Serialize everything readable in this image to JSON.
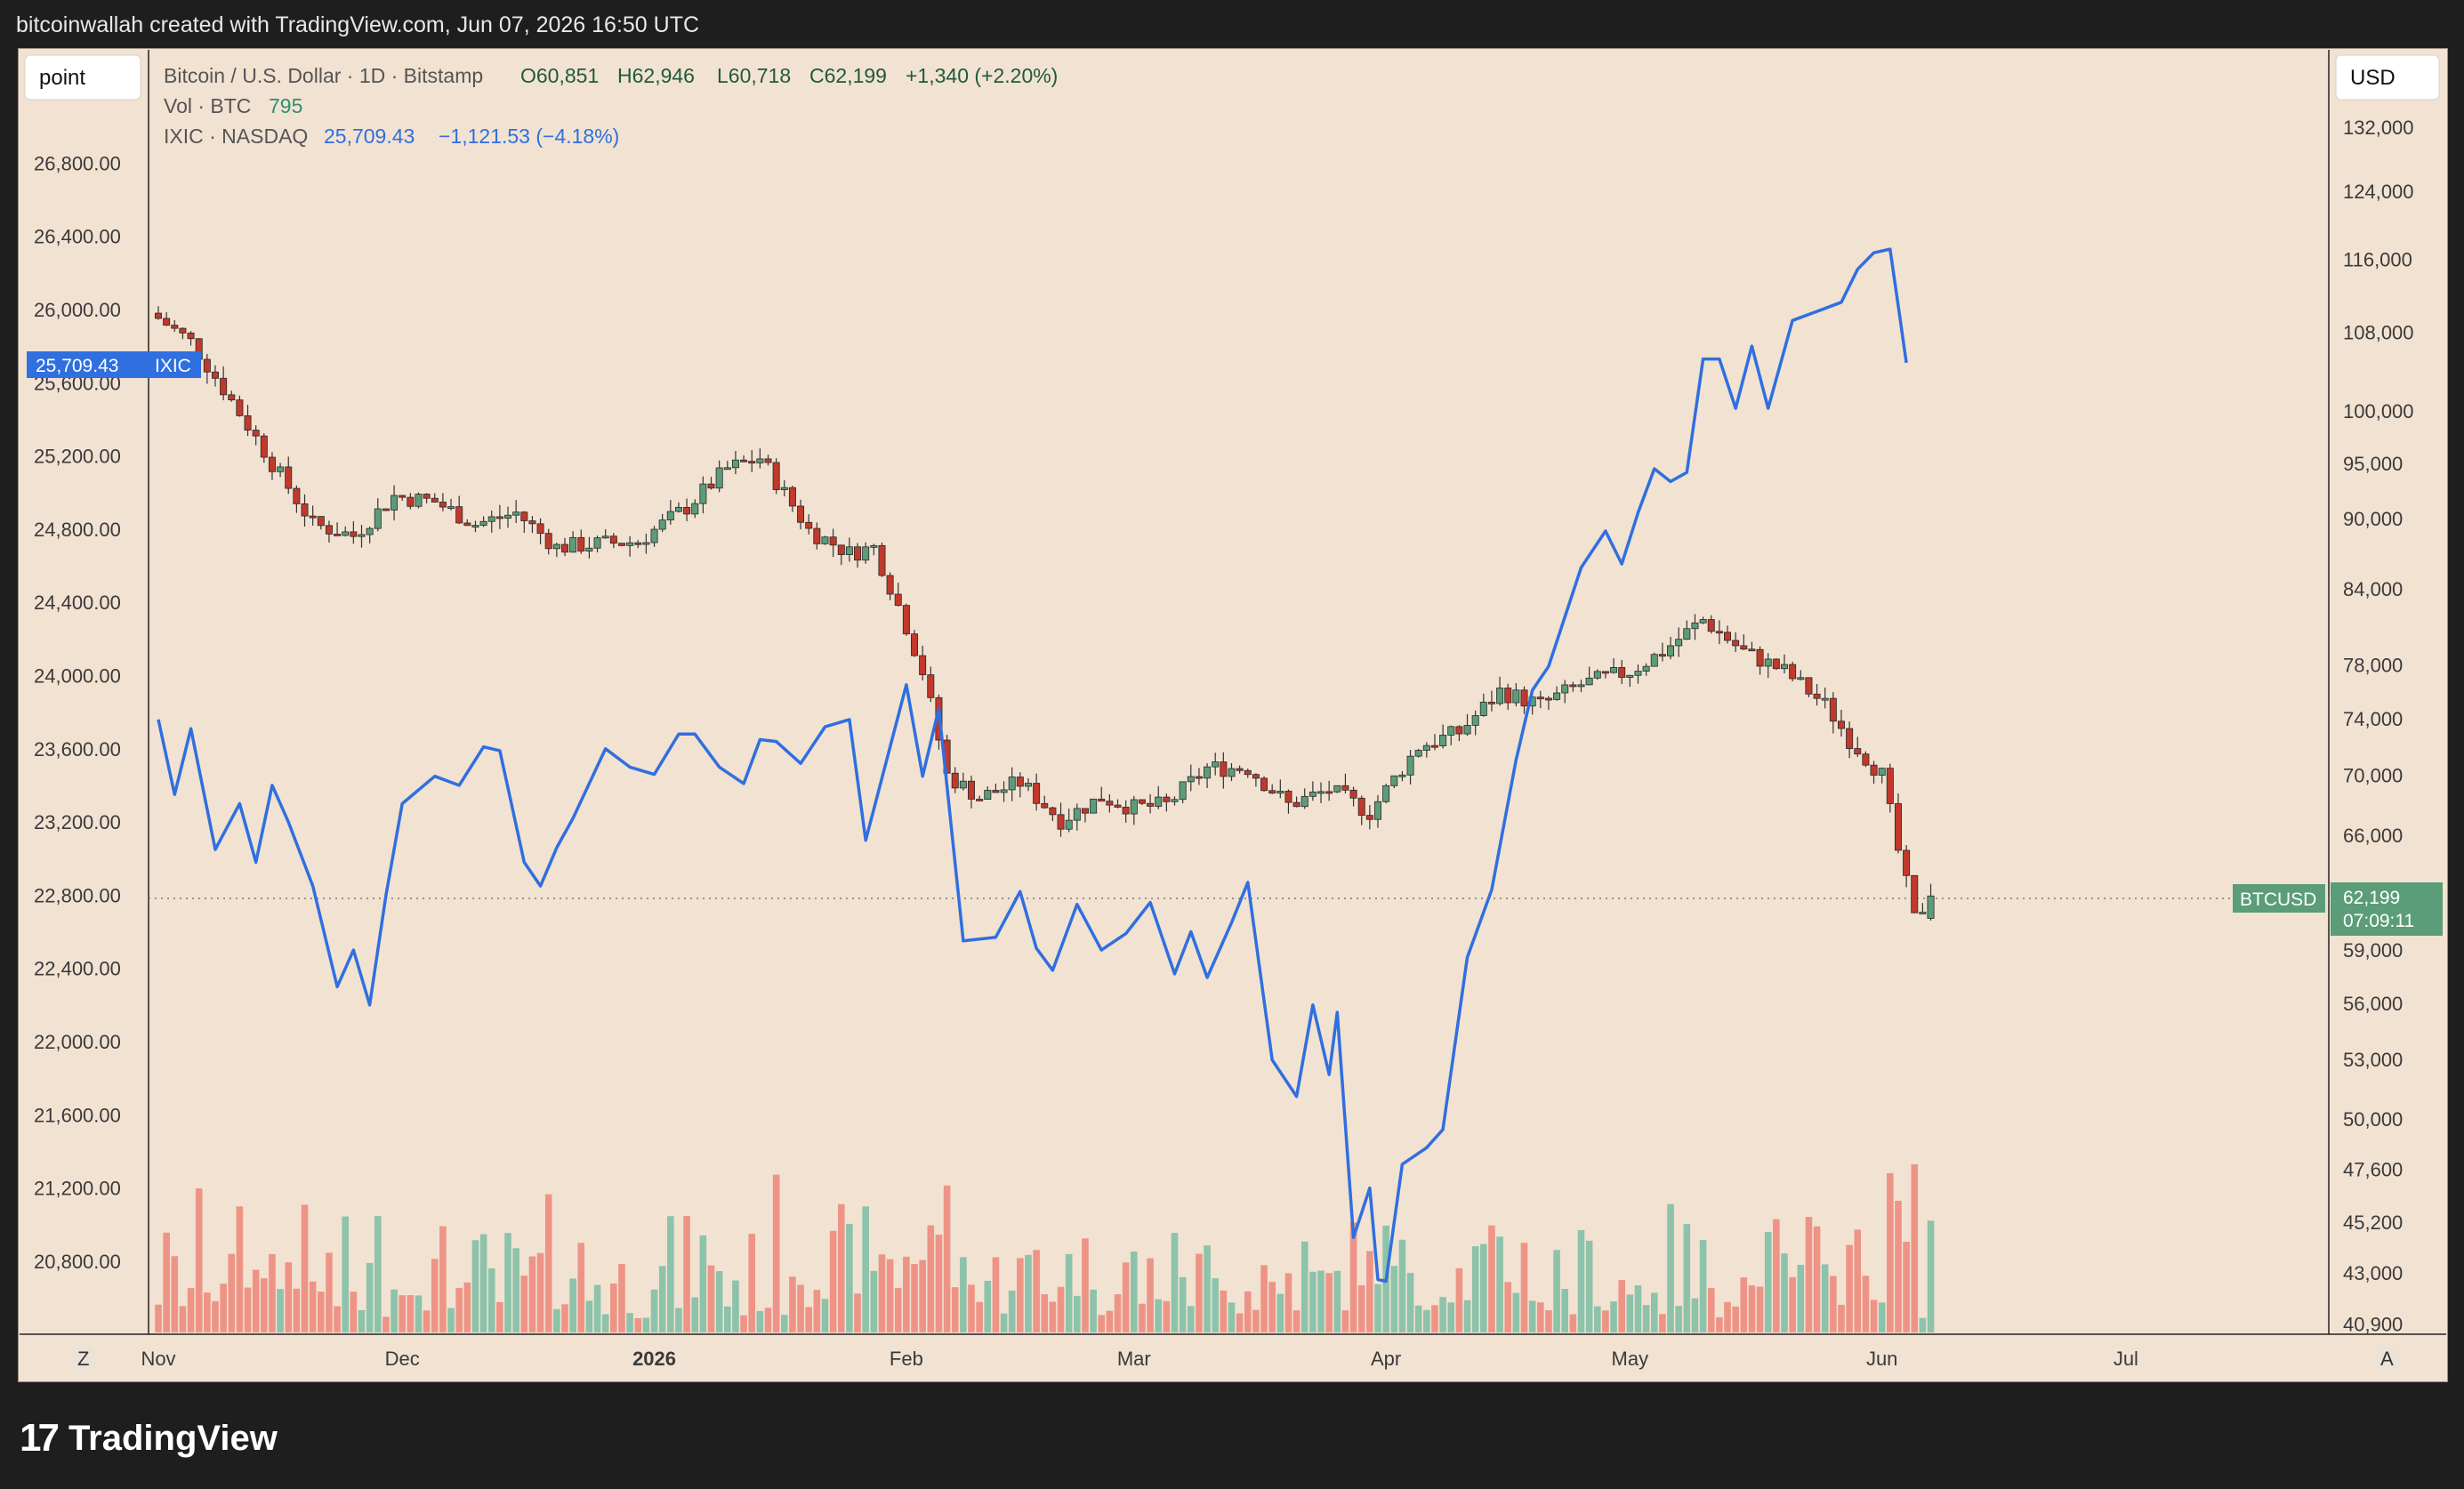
{
  "caption": "bitcoinwallah created with TradingView.com, Jun 07, 2026 16:50 UTC",
  "brand": {
    "mark": "17",
    "name": "TradingView"
  },
  "controls": {
    "point": "point",
    "currency": "USD",
    "left_bottom": "Z",
    "right_bottom": "A"
  },
  "legend": {
    "main": {
      "symbol": "Bitcoin / U.S. Dollar · 1D · Bitstamp",
      "o": "O60,851",
      "h": "H62,946",
      "l": "L60,718",
      "c": "C62,199",
      "chg": "+1,340 (+2.20%)"
    },
    "vol": {
      "label": "Vol · BTC",
      "value": "795"
    },
    "ixic": {
      "label": "IXIC · NASDAQ",
      "value": "25,709.43",
      "chg": "−1,121.53 (−4.18%)"
    }
  },
  "badges": {
    "ixic_value": "25,709.43",
    "ixic_name": "IXIC",
    "btc_name": "BTCUSD",
    "btc_price": "62,199",
    "btc_time": "07:09:11"
  },
  "colors": {
    "background": "#f2e2d2",
    "up": "#5b9c79",
    "down": "#c0392b",
    "ixic": "#2f6fe0",
    "vol_up": "#8cc3aa",
    "vol_down": "#ee9487"
  },
  "chart_data": {
    "type": "line",
    "title": "Bitcoin / U.S. Dollar · 1D · Bitstamp",
    "left_axis": {
      "series": "IXIC · NASDAQ",
      "ticks": [
        "26,800.00",
        "26,400.00",
        "26,000.00",
        "25,600.00",
        "25,200.00",
        "24,800.00",
        "24,400.00",
        "24,000.00",
        "23,600.00",
        "23,200.00",
        "22,800.00",
        "22,400.00",
        "22,000.00",
        "21,600.00",
        "21,200.00",
        "20,800.00"
      ],
      "ylim": [
        20400,
        27400
      ]
    },
    "right_axis": {
      "series": "BTCUSD",
      "scale": "log",
      "ticks": [
        "132,000",
        "124,000",
        "116,000",
        "108,000",
        "100,000",
        "95,000",
        "90,000",
        "84,000",
        "78,000",
        "74,000",
        "70,000",
        "66,000",
        "59,000",
        "56,000",
        "53,000",
        "50,000",
        "47,600",
        "45,200",
        "43,000",
        "40,900"
      ]
    },
    "x_ticks": [
      "Nov",
      "Dec",
      "2026",
      "Feb",
      "Mar",
      "Apr",
      "May",
      "Jun",
      "Jul"
    ],
    "x_tick_dates": [
      "2025-11-01",
      "2025-12-01",
      "2026-01-01",
      "2026-02-01",
      "2026-03-01",
      "2026-04-01",
      "2026-05-01",
      "2026-06-01",
      "2026-07-01"
    ],
    "series": [
      {
        "name": "IXIC · NASDAQ",
        "x": [
          "2025-11-01",
          "2025-11-03",
          "2025-11-05",
          "2025-11-08",
          "2025-11-11",
          "2025-11-13",
          "2025-11-15",
          "2025-11-17",
          "2025-11-20",
          "2025-11-23",
          "2025-11-25",
          "2025-11-27",
          "2025-11-29",
          "2025-12-01",
          "2025-12-05",
          "2025-12-08",
          "2025-12-11",
          "2025-12-13",
          "2025-12-16",
          "2025-12-18",
          "2025-12-20",
          "2025-12-22",
          "2025-12-26",
          "2025-12-29",
          "2026-01-01",
          "2026-01-04",
          "2026-01-06",
          "2026-01-09",
          "2026-01-12",
          "2026-01-14",
          "2026-01-16",
          "2026-01-19",
          "2026-01-22",
          "2026-01-25",
          "2026-01-27",
          "2026-01-29",
          "2026-02-01",
          "2026-02-03",
          "2026-02-05",
          "2026-02-08",
          "2026-02-12",
          "2026-02-15",
          "2026-02-17",
          "2026-02-19",
          "2026-02-22",
          "2026-02-25",
          "2026-02-28",
          "2026-03-03",
          "2026-03-06",
          "2026-03-08",
          "2026-03-10",
          "2026-03-13",
          "2026-03-15",
          "2026-03-18",
          "2026-03-21",
          "2026-03-23",
          "2026-03-25",
          "2026-03-26",
          "2026-03-28",
          "2026-03-30",
          "2026-03-31",
          "2026-04-01",
          "2026-04-03",
          "2026-04-06",
          "2026-04-08",
          "2026-04-11",
          "2026-04-14",
          "2026-04-17",
          "2026-04-19",
          "2026-04-21",
          "2026-04-23",
          "2026-04-25",
          "2026-04-28",
          "2026-04-30",
          "2026-05-02",
          "2026-05-04",
          "2026-05-06",
          "2026-05-08",
          "2026-05-10",
          "2026-05-12",
          "2026-05-14",
          "2026-05-16",
          "2026-05-18",
          "2026-05-21",
          "2026-05-24",
          "2026-05-27",
          "2026-05-29",
          "2026-05-31",
          "2026-06-02",
          "2026-06-03",
          "2026-06-04"
        ],
        "values": [
          23760,
          23350,
          23710,
          23050,
          23300,
          22980,
          23400,
          23200,
          22850,
          22300,
          22500,
          22200,
          22800,
          23300,
          23450,
          23400,
          23610,
          23590,
          22980,
          22850,
          23060,
          23220,
          23600,
          23500,
          23460,
          23680,
          23680,
          23500,
          23410,
          23650,
          23640,
          23520,
          23720,
          23760,
          23100,
          23440,
          23950,
          23450,
          23820,
          22550,
          22570,
          22820,
          22510,
          22390,
          22750,
          22500,
          22590,
          22760,
          22370,
          22600,
          22350,
          22650,
          22870,
          21900,
          21700,
          22200,
          21820,
          22160,
          20930,
          21200,
          20700,
          20690,
          21330,
          21420,
          21520,
          22460,
          22830,
          23540,
          23920,
          24050,
          24320,
          24590,
          24790,
          24610,
          24890,
          25130,
          25060,
          25110,
          25730,
          25730,
          25460,
          25800,
          25460,
          25940,
          25990,
          26040,
          26220,
          26310,
          26330,
          26020,
          25709
        ],
        "color": "#2f6fe0"
      },
      {
        "name": "BTCUSD",
        "x": [
          "2025-11-01",
          "2025-11-05",
          "2025-11-10",
          "2025-11-15",
          "2025-11-20",
          "2025-11-25",
          "2025-11-30",
          "2025-12-05",
          "2025-12-10",
          "2025-12-15",
          "2025-12-20",
          "2025-12-25",
          "2025-12-30",
          "2026-01-05",
          "2026-01-10",
          "2026-01-14",
          "2026-01-20",
          "2026-01-25",
          "2026-01-28",
          "2026-02-01",
          "2026-02-03",
          "2026-02-06",
          "2026-02-10",
          "2026-02-15",
          "2026-02-20",
          "2026-02-25",
          "2026-03-01",
          "2026-03-05",
          "2026-03-10",
          "2026-03-15",
          "2026-03-20",
          "2026-03-25",
          "2026-03-30",
          "2026-04-05",
          "2026-04-10",
          "2026-04-15",
          "2026-04-20",
          "2026-04-25",
          "2026-05-01",
          "2026-05-05",
          "2026-05-10",
          "2026-05-15",
          "2026-05-20",
          "2026-05-25",
          "2026-05-28",
          "2026-06-01",
          "2026-06-03",
          "2026-06-05",
          "2026-06-07"
        ],
        "values": [
          109500,
          107000,
          101000,
          95000,
          89500,
          88500,
          92000,
          91500,
          89500,
          90500,
          87500,
          87800,
          88000,
          91000,
          94500,
          95500,
          89000,
          87000,
          87500,
          81000,
          77500,
          70000,
          68500,
          69500,
          67000,
          68500,
          67800,
          68000,
          70500,
          70500,
          68000,
          69000,
          67500,
          72000,
          73000,
          76000,
          75000,
          76500,
          77500,
          79000,
          81500,
          79000,
          77500,
          75000,
          72500,
          70000,
          65000,
          60800,
          62199
        ],
        "color": "#5b9c79"
      }
    ],
    "annotations": [
      "BTC last price 62,199",
      "IXIC last value 25,709.43"
    ]
  }
}
